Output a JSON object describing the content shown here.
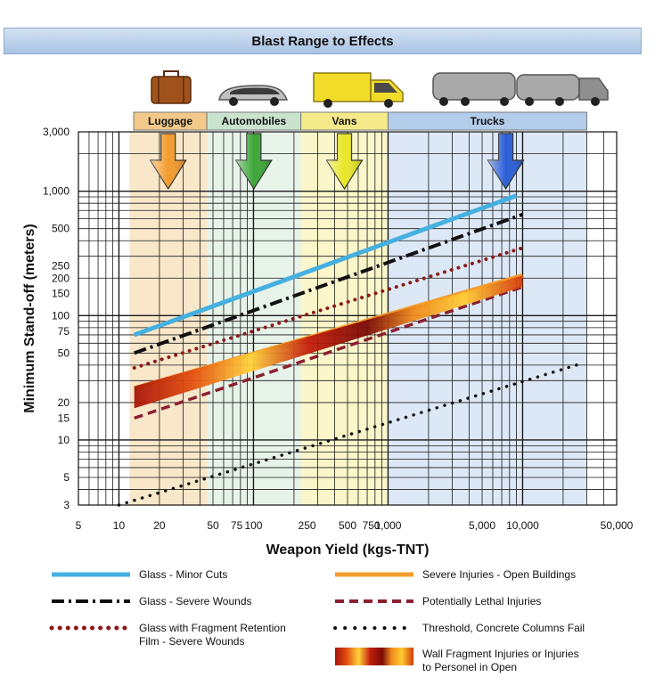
{
  "chart_data": {
    "type": "line",
    "title": "Blast Range to Effects",
    "xlabel": "Weapon Yield (kgs-TNT)",
    "ylabel": "Minimum Stand-off (meters)",
    "x_scale": "log",
    "y_scale": "log",
    "xlim": [
      5,
      50000
    ],
    "ylim": [
      3,
      3000
    ],
    "x_ticks": [
      5,
      10,
      20,
      50,
      75,
      100,
      250,
      500,
      750,
      1000,
      5000,
      10000,
      50000
    ],
    "x_tick_labels": [
      "5",
      "10",
      "20",
      "50",
      "75",
      "100",
      "250",
      "500",
      "750",
      "1,000",
      "5,000",
      "10,000",
      "50,000"
    ],
    "y_ticks": [
      3,
      5,
      10,
      15,
      20,
      50,
      75,
      100,
      150,
      200,
      250,
      500,
      1000,
      3000
    ],
    "y_tick_labels": [
      "3",
      "5",
      "10",
      "15",
      "20",
      "50",
      "75",
      "100",
      "150",
      "200",
      "250",
      "500",
      "1,000",
      "3,000"
    ],
    "grid": true,
    "categories": [
      {
        "label": "Luggage",
        "range": [
          12,
          45
        ],
        "color": "#f2c98a",
        "arrow": "#f39c2e"
      },
      {
        "label": "Automobiles",
        "range": [
          45,
          225
        ],
        "color": "#c9e3cf",
        "arrow": "#3ea639"
      },
      {
        "label": "Vans",
        "range": [
          225,
          1000
        ],
        "color": "#f5ea8a",
        "arrow": "#e8e628"
      },
      {
        "label": "Trucks",
        "range": [
          1000,
          30000
        ],
        "color": "#b3cdea",
        "arrow": "#2a5ed6"
      }
    ],
    "series": [
      {
        "name": "Glass - Minor Cuts",
        "style": "solid",
        "color": "#45b0e0",
        "x": [
          13,
          9000
        ],
        "y": [
          70,
          920
        ]
      },
      {
        "name": "Glass - Severe Wounds",
        "style": "dashdot",
        "color": "#111111",
        "x": [
          13,
          10000
        ],
        "y": [
          50,
          650
        ]
      },
      {
        "name": "Glass with Fragment Retention Film - Severe Wounds",
        "style": "dots",
        "color": "#8b1a1a",
        "x": [
          13,
          10000
        ],
        "y": [
          38,
          350
        ]
      },
      {
        "name": "Severe Injuries - Open Buildings",
        "style": "solid",
        "color": "#f39c2e",
        "x": [
          13,
          10000
        ],
        "y": [
          26,
          210
        ]
      },
      {
        "name": "Potentially Lethal Injuries",
        "style": "dashed",
        "color": "#8b2030",
        "x": [
          13,
          10000
        ],
        "y": [
          15,
          170
        ]
      },
      {
        "name": "Threshold, Concrete Columns Fail",
        "style": "dotted",
        "color": "#111111",
        "x": [
          10,
          27000
        ],
        "y": [
          3,
          41
        ]
      },
      {
        "name": "Wall Fragment Injuries or Injuries to Personel in Open",
        "style": "band",
        "color": "#e0440e",
        "x": [
          13,
          10000
        ],
        "y_low": [
          18,
          170
        ],
        "y_high": [
          27,
          210
        ]
      }
    ]
  },
  "legend": [
    {
      "key": "glass_minor",
      "label": "Glass - Minor Cuts"
    },
    {
      "key": "glass_severe",
      "label": "Glass - Severe Wounds"
    },
    {
      "key": "glass_film",
      "label": "Glass with Fragment Retention Film - Severe Wounds"
    },
    {
      "key": "open_buildings",
      "label": "Severe Injuries - Open Buildings"
    },
    {
      "key": "lethal",
      "label": "Potentially Lethal Injuries"
    },
    {
      "key": "columns",
      "label": "Threshold, Concrete Columns Fail"
    },
    {
      "key": "wall_fragment",
      "label": "Wall Fragment Injuries or Injuries to Personel in Open"
    }
  ]
}
